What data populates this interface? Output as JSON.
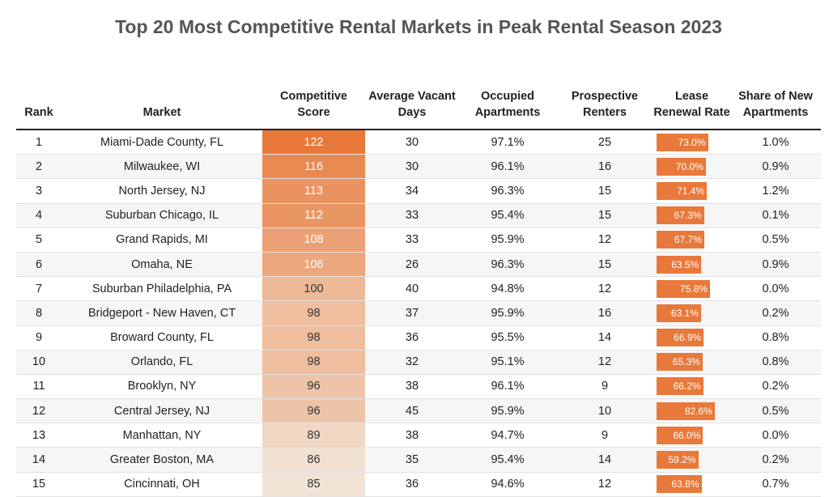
{
  "title": "Top 20 Most Competitive Rental Markets in Peak Rental Season 2023",
  "columns": [
    "Rank",
    "Market",
    "Competitive Score",
    "Average Vacant Days",
    "Occupied Apartments",
    "Prospective Renters",
    "Lease Renewal Rate",
    "Share of New Apartments"
  ],
  "colors": {
    "score_high": "#e8793a",
    "score_low": "#f1e4d6",
    "renewal_bar": "#e8793a"
  },
  "chart_data": {
    "type": "table",
    "title": "Top 20 Most Competitive Rental Markets in Peak Rental Season 2023",
    "score_color_range": [
      85,
      122
    ],
    "renewal_bar_scale": [
      0,
      100
    ],
    "rows": [
      {
        "rank": "1",
        "market": "Miami-Dade County, FL",
        "score": 122,
        "vacant_days": "30",
        "occupied": "97.1%",
        "renters": "25",
        "renewal": 73.0,
        "renewal_label": "73.0%",
        "share_new": "1.0%"
      },
      {
        "rank": "2",
        "market": "Milwaukee, WI",
        "score": 116,
        "vacant_days": "30",
        "occupied": "96.1%",
        "renters": "16",
        "renewal": 70.0,
        "renewal_label": "70.0%",
        "share_new": "0.9%"
      },
      {
        "rank": "3",
        "market": "North Jersey, NJ",
        "score": 113,
        "vacant_days": "34",
        "occupied": "96.3%",
        "renters": "15",
        "renewal": 71.4,
        "renewal_label": "71.4%",
        "share_new": "1.2%"
      },
      {
        "rank": "4",
        "market": "Suburban Chicago, IL",
        "score": 112,
        "vacant_days": "33",
        "occupied": "95.4%",
        "renters": "15",
        "renewal": 67.3,
        "renewal_label": "67.3%",
        "share_new": "0.1%"
      },
      {
        "rank": "5",
        "market": "Grand Rapids, MI",
        "score": 108,
        "vacant_days": "33",
        "occupied": "95.9%",
        "renters": "12",
        "renewal": 67.7,
        "renewal_label": "67.7%",
        "share_new": "0.5%"
      },
      {
        "rank": "6",
        "market": "Omaha, NE",
        "score": 106,
        "vacant_days": "26",
        "occupied": "96.3%",
        "renters": "15",
        "renewal": 63.5,
        "renewal_label": "63.5%",
        "share_new": "0.9%"
      },
      {
        "rank": "7",
        "market": "Suburban Philadelphia, PA",
        "score": 100,
        "vacant_days": "40",
        "occupied": "94.8%",
        "renters": "12",
        "renewal": 75.8,
        "renewal_label": "75.8%",
        "share_new": "0.0%"
      },
      {
        "rank": "8",
        "market": "Bridgeport - New Haven, CT",
        "score": 98,
        "vacant_days": "37",
        "occupied": "95.9%",
        "renters": "16",
        "renewal": 63.1,
        "renewal_label": "63.1%",
        "share_new": "0.2%"
      },
      {
        "rank": "9",
        "market": "Broward County, FL",
        "score": 98,
        "vacant_days": "36",
        "occupied": "95.5%",
        "renters": "14",
        "renewal": 66.9,
        "renewal_label": "66.9%",
        "share_new": "0.8%"
      },
      {
        "rank": "10",
        "market": "Orlando, FL",
        "score": 98,
        "vacant_days": "32",
        "occupied": "95.1%",
        "renters": "12",
        "renewal": 65.3,
        "renewal_label": "65.3%",
        "share_new": "0.8%"
      },
      {
        "rank": "11",
        "market": "Brooklyn, NY",
        "score": 96,
        "vacant_days": "38",
        "occupied": "96.1%",
        "renters": "9",
        "renewal": 66.2,
        "renewal_label": "66.2%",
        "share_new": "0.2%"
      },
      {
        "rank": "12",
        "market": "Central Jersey, NJ",
        "score": 96,
        "vacant_days": "45",
        "occupied": "95.9%",
        "renters": "10",
        "renewal": 82.6,
        "renewal_label": "82.6%",
        "share_new": "0.5%"
      },
      {
        "rank": "13",
        "market": "Manhattan, NY",
        "score": 89,
        "vacant_days": "38",
        "occupied": "94.7%",
        "renters": "9",
        "renewal": 66.0,
        "renewal_label": "66.0%",
        "share_new": "0.0%"
      },
      {
        "rank": "14",
        "market": "Greater Boston, MA",
        "score": 86,
        "vacant_days": "35",
        "occupied": "95.4%",
        "renters": "14",
        "renewal": 59.2,
        "renewal_label": "59.2%",
        "share_new": "0.2%"
      },
      {
        "rank": "15",
        "market": "Cincinnati, OH",
        "score": 85,
        "vacant_days": "36",
        "occupied": "94.6%",
        "renters": "12",
        "renewal": 63.8,
        "renewal_label": "63.8%",
        "share_new": "0.7%"
      }
    ]
  }
}
